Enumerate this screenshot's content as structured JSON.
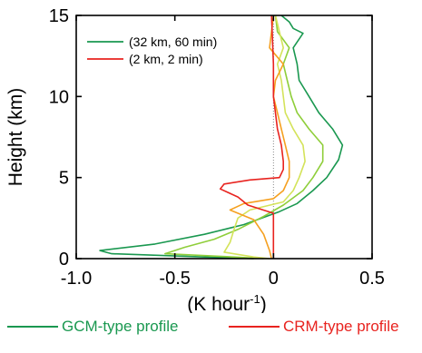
{
  "chart_data": {
    "type": "line",
    "title": "",
    "xlabel": "(K hour",
    "xlabel_sup": "-1",
    "xlabel_end": ")",
    "ylabel": "Height (km)",
    "xlim": [
      -1.0,
      0.5
    ],
    "ylim": [
      0,
      15
    ],
    "xticks": [
      -1.0,
      -0.5,
      0,
      0.5
    ],
    "xtick_labels": [
      "-1.0",
      "-0.5",
      "0",
      "0.5"
    ],
    "yticks": [
      0,
      5,
      10,
      15
    ],
    "ytick_labels": [
      "0",
      "5",
      "10",
      "15"
    ],
    "zero_reference_line": true,
    "grid": false,
    "legend_position": "top-left",
    "series": [
      {
        "name": "(32 km, 60 min)",
        "color": "#1a9850",
        "points": [
          [
            -0.1,
            0
          ],
          [
            -0.35,
            0.1
          ],
          [
            -0.82,
            0.3
          ],
          [
            -0.88,
            0.5
          ],
          [
            -0.6,
            0.9
          ],
          [
            -0.35,
            1.5
          ],
          [
            -0.15,
            2.1
          ],
          [
            0.03,
            2.9
          ],
          [
            0.12,
            3.4
          ],
          [
            0.2,
            4.2
          ],
          [
            0.27,
            5.0
          ],
          [
            0.33,
            6.1
          ],
          [
            0.35,
            7.0
          ],
          [
            0.3,
            8.0
          ],
          [
            0.23,
            9.0
          ],
          [
            0.18,
            10.0
          ],
          [
            0.13,
            11.0
          ],
          [
            0.12,
            12.0
          ],
          [
            0.1,
            13.0
          ],
          [
            0.15,
            13.9
          ],
          [
            0.1,
            14.2
          ],
          [
            0.08,
            14.6
          ],
          [
            0.04,
            15.0
          ]
        ]
      },
      {
        "name": "",
        "color": "#8fce3a",
        "points": [
          [
            -0.05,
            0
          ],
          [
            -0.2,
            0.1
          ],
          [
            -0.55,
            0.3
          ],
          [
            -0.45,
            0.7
          ],
          [
            -0.3,
            1.2
          ],
          [
            -0.18,
            1.8
          ],
          [
            -0.05,
            2.6
          ],
          [
            0.05,
            3.3
          ],
          [
            0.15,
            4.2
          ],
          [
            0.2,
            5.0
          ],
          [
            0.25,
            6.0
          ],
          [
            0.25,
            7.0
          ],
          [
            0.18,
            8.0
          ],
          [
            0.12,
            9.0
          ],
          [
            0.09,
            10.0
          ],
          [
            0.07,
            11.0
          ],
          [
            0.05,
            12.0
          ],
          [
            0.08,
            13.0
          ],
          [
            0.02,
            14.0
          ],
          [
            0.01,
            15.0
          ]
        ]
      },
      {
        "name": "",
        "color": "#d4e35a",
        "points": [
          [
            -0.02,
            0
          ],
          [
            -0.1,
            0.1
          ],
          [
            -0.25,
            0.4
          ],
          [
            -0.22,
            1.0
          ],
          [
            -0.2,
            1.8
          ],
          [
            -0.18,
            2.5
          ],
          [
            -0.12,
            3.0
          ],
          [
            0.05,
            3.5
          ],
          [
            0.1,
            4.2
          ],
          [
            0.13,
            5.0
          ],
          [
            0.16,
            6.0
          ],
          [
            0.15,
            7.0
          ],
          [
            0.1,
            8.0
          ],
          [
            0.06,
            9.0
          ],
          [
            0.05,
            10.0
          ],
          [
            0.04,
            11.0
          ],
          [
            0.02,
            12.0
          ],
          [
            0.05,
            13.0
          ],
          [
            0.03,
            14.0
          ],
          [
            0.01,
            15.0
          ]
        ]
      },
      {
        "name": "",
        "color": "#f5a020",
        "points": [
          [
            -0.01,
            0
          ],
          [
            -0.02,
            0.5
          ],
          [
            -0.05,
            1.5
          ],
          [
            -0.1,
            2.4
          ],
          [
            -0.22,
            3.0
          ],
          [
            -0.15,
            3.4
          ],
          [
            0.0,
            3.7
          ],
          [
            0.05,
            4.2
          ],
          [
            0.08,
            5.0
          ],
          [
            0.08,
            6.0
          ],
          [
            0.06,
            7.0
          ],
          [
            0.04,
            8.0
          ],
          [
            0.02,
            9.0
          ],
          [
            0.0,
            10.0
          ],
          [
            0.01,
            11.0
          ],
          [
            0.05,
            12.0
          ],
          [
            -0.02,
            13.0
          ],
          [
            -0.01,
            14.0
          ],
          [
            0.0,
            15.0
          ]
        ]
      },
      {
        "name": "(2 km,  2 min)",
        "color": "#e8231f",
        "points": [
          [
            0.0,
            0
          ],
          [
            0.0,
            2.8
          ],
          [
            -0.13,
            3.3
          ],
          [
            -0.18,
            3.8
          ],
          [
            -0.27,
            4.3
          ],
          [
            -0.25,
            4.6
          ],
          [
            -0.12,
            4.85
          ],
          [
            0.03,
            5.0
          ],
          [
            0.05,
            5.5
          ],
          [
            0.05,
            6.0
          ],
          [
            0.04,
            7.0
          ],
          [
            0.02,
            8.0
          ],
          [
            0.01,
            9.0
          ],
          [
            0.0,
            10.0
          ],
          [
            0.0,
            12.0
          ],
          [
            -0.01,
            15.0
          ]
        ]
      }
    ]
  },
  "bottom_legend": {
    "gcm_label": "GCM-type profile",
    "crm_label": "CRM-type profile",
    "gcm_color": "#1a9850",
    "crm_color": "#e8231f"
  }
}
